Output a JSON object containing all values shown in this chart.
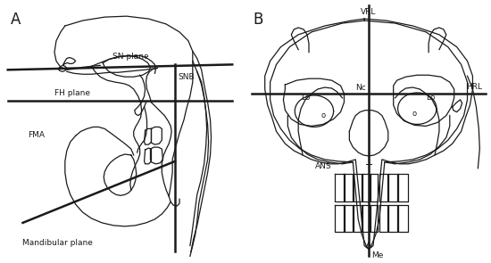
{
  "bg_color": "#ffffff",
  "panel_A_label": "A",
  "panel_B_label": "B",
  "col": "#1a1a1a",
  "lw_thin": 0.9,
  "lw_thick": 1.8,
  "panel_A": {
    "sn_label": "SN plane",
    "fh_label": "FH plane",
    "mand_label": "Mandibular plane",
    "snb_label": "SNB",
    "fma_label": "FMA"
  },
  "panel_B": {
    "vrl_label": "VRL",
    "hrl_label": "HRL",
    "lo_left": "Lo",
    "lo_right": "Lo",
    "nc_label": "Nc",
    "o_left": "o",
    "o_right": "o",
    "ans_label": "ANS",
    "me_label": "Me"
  }
}
